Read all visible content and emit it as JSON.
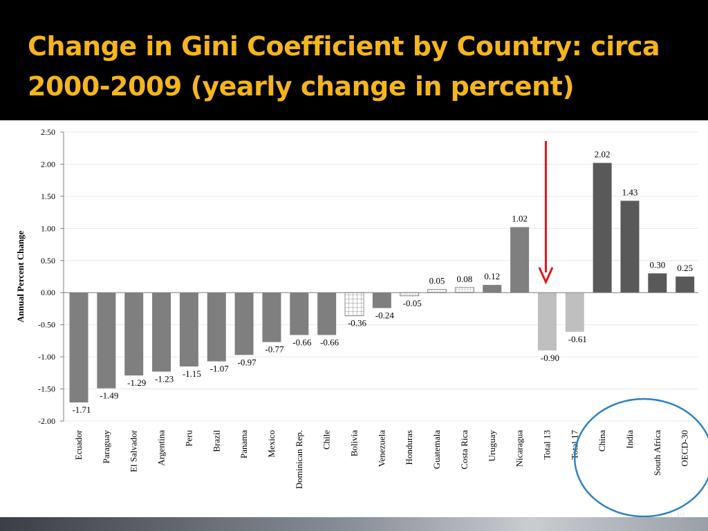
{
  "slide": {
    "title": "Change in Gini Coefficient by Country: circa 2000-2009 (yearly change in percent)",
    "page_number": "10"
  },
  "chart_data": {
    "type": "bar",
    "title": "Change in Gini Coefficient by Country: circa 2000-2009 (yearly change in percent)",
    "xlabel": "",
    "ylabel": "Annual Percent Change",
    "ylim": [
      -2.0,
      2.5
    ],
    "yticks": [
      "2.50",
      "2.00",
      "1.50",
      "1.00",
      "0.50",
      "0.00",
      "-0.50",
      "-1.00",
      "-1.50",
      "-2.00"
    ],
    "grid": true,
    "categories": [
      "Ecuador",
      "Paraguay",
      "El Salvador",
      "Argentina",
      "Peru",
      "Brazil",
      "Panama",
      "Mexico",
      "Dominican Rep.",
      "Chile",
      "Bolivia",
      "Venezuela",
      "Honduras",
      "Guatemala",
      "Costa Rica",
      "Uruguay",
      "Nicaragua",
      "Total 13",
      "Total 17",
      "China",
      "India",
      "South Africa",
      "OECD-30"
    ],
    "values": [
      -1.71,
      -1.49,
      -1.29,
      -1.23,
      -1.15,
      -1.07,
      -0.97,
      -0.77,
      -0.66,
      -0.66,
      -0.36,
      -0.24,
      -0.05,
      0.05,
      0.08,
      0.12,
      1.02,
      -0.9,
      -0.61,
      2.02,
      1.43,
      0.3,
      0.25
    ],
    "data_labels": [
      "-1.71",
      "-1.49",
      "-1.29",
      "-1.23",
      "-1.15",
      "-1.07",
      "-0.97",
      "-0.77",
      "-0.66",
      "-0.66",
      "-0.36",
      "-0.24",
      "-0.05",
      "0.05",
      "0.08",
      "0.12",
      "1.02",
      "-0.90",
      "-0.61",
      "2.02",
      "1.43",
      "0.30",
      "0.25"
    ],
    "bar_styles": [
      "solid",
      "solid",
      "solid",
      "solid",
      "solid",
      "solid",
      "solid",
      "solid",
      "solid",
      "solid",
      "grid",
      "solid",
      "hatched",
      "hatched",
      "hatched",
      "solid",
      "solid",
      "light",
      "light",
      "dark",
      "dark",
      "dark",
      "dark"
    ],
    "colors": {
      "solid": "#7f7f7f",
      "light": "#bfbfbf",
      "dark": "#595959",
      "pattern_stroke": "#8c8c8c",
      "arrow": "#e8141b",
      "circle": "#2f80c4"
    },
    "annotations": {
      "arrow_points_to": "Total 13",
      "circled_categories": [
        "China",
        "India",
        "South Africa",
        "OECD-30"
      ]
    }
  }
}
